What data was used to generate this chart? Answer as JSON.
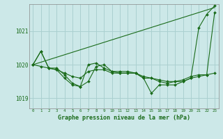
{
  "title": "Graphe pression niveau de la mer (hPa)",
  "background_color": "#cce8e8",
  "grid_color": "#aad0d0",
  "line_color": "#1a6b1a",
  "text_color": "#1a6b1a",
  "xlim": [
    -0.5,
    23.5
  ],
  "ylim": [
    1018.7,
    1021.8
  ],
  "yticks": [
    1019,
    1020,
    1021
  ],
  "xticks": [
    0,
    1,
    2,
    3,
    4,
    5,
    6,
    7,
    8,
    9,
    10,
    11,
    12,
    13,
    14,
    15,
    16,
    17,
    18,
    19,
    20,
    21,
    22,
    23
  ],
  "series": [
    {
      "x": [
        0,
        23
      ],
      "y": [
        1020.0,
        1021.7
      ],
      "has_markers": false
    },
    {
      "x": [
        0,
        1,
        2,
        3,
        4,
        5,
        6,
        7,
        8,
        9,
        10,
        11,
        12,
        13,
        14,
        15,
        16,
        17,
        18,
        19,
        20,
        21,
        22,
        23
      ],
      "y": [
        1020.0,
        1020.4,
        1019.9,
        1019.85,
        1019.6,
        1019.4,
        1019.35,
        1020.0,
        1020.05,
        1019.9,
        1019.8,
        1019.8,
        1019.8,
        1019.75,
        1019.6,
        1019.15,
        1019.4,
        1019.4,
        1019.4,
        1019.5,
        1019.6,
        1021.1,
        1021.5,
        1021.75
      ],
      "has_markers": true
    },
    {
      "x": [
        0,
        1,
        2,
        3,
        4,
        5,
        6,
        7,
        8,
        9,
        10,
        11,
        12,
        13,
        14,
        15,
        16,
        17,
        18,
        19,
        20,
        21,
        22,
        23
      ],
      "y": [
        1020.0,
        1020.4,
        1019.9,
        1019.9,
        1019.7,
        1019.45,
        1019.35,
        1019.5,
        1019.95,
        1020.0,
        1019.8,
        1019.75,
        1019.75,
        1019.75,
        1019.6,
        1019.6,
        1019.5,
        1019.45,
        1019.5,
        1019.5,
        1019.6,
        1019.65,
        1019.7,
        1021.55
      ],
      "has_markers": true
    },
    {
      "x": [
        0,
        1,
        2,
        3,
        4,
        5,
        6,
        7,
        8,
        9,
        10,
        11,
        12,
        13,
        14,
        15,
        16,
        17,
        18,
        19,
        20,
        21,
        22,
        23
      ],
      "y": [
        1020.0,
        1019.95,
        1019.9,
        1019.85,
        1019.75,
        1019.65,
        1019.6,
        1019.8,
        1019.85,
        1019.85,
        1019.75,
        1019.75,
        1019.75,
        1019.75,
        1019.65,
        1019.6,
        1019.55,
        1019.5,
        1019.5,
        1019.55,
        1019.65,
        1019.7,
        1019.7,
        1019.75
      ],
      "has_markers": true
    }
  ]
}
